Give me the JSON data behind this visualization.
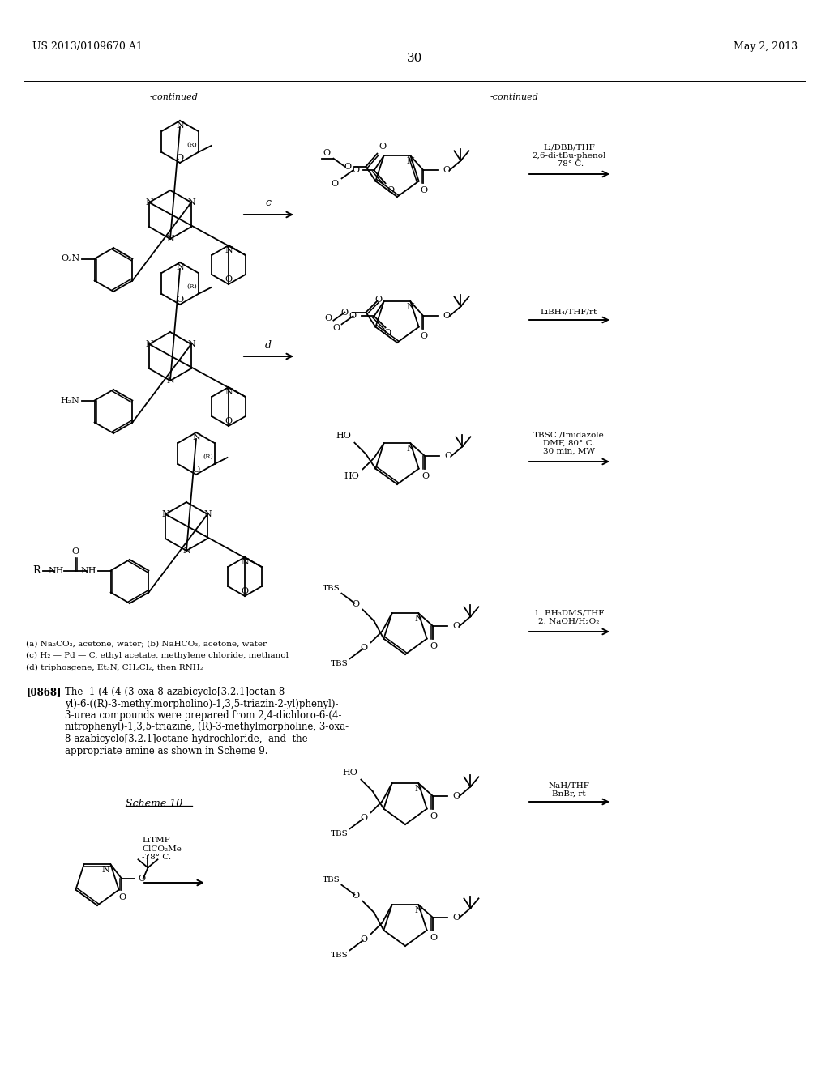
{
  "patent_number": "US 2013/0109670 A1",
  "patent_date": "May 2, 2013",
  "page_number": "30",
  "background_color": "#ffffff",
  "continued_left": "-continued",
  "continued_right": "-continued",
  "scheme_label": "Scheme 10",
  "footnotes": [
    "(a) Na₂CO₃, acetone, water; (b) NaHCO₃, acetone, water",
    "(c) H₂ — Pd — C, ethyl acetate, methylene chloride, methanol",
    "(d) triphosgene, Et₃N, CH₂Cl₂, then RNH₂"
  ],
  "paragraph_tag": "[0868]",
  "paragraph_lines": [
    "The  1-(4-(4-(3-oxa-8-azabicyclo[3.2.1]octan-8-",
    "yl)-6-((R)-3-methylmorpholino)-1,3,5-triazin-2-yl)phenyl)-",
    "3-urea compounds were prepared from 2,4-dichloro-6-(4-",
    "nitrophenyl)-1,3,5-triazine, (R)-3-methylmorpholine, 3-oxa-",
    "8-azabicyclo[3.2.1]octane-hydrochloride,  and  the",
    "appropriate amine as shown in Scheme 9."
  ],
  "right_reagents": [
    "Li/DBB/THF\n2,6-di-tBu-phenol\n-78° C.",
    "LiBH₄/THF/rt",
    "TBSCl/Imidazole\nDMF, 80° C.\n30 min, MW",
    "1. BH₃DMS/THF\n2. NaOH/H₂O₂",
    "NaH/THF\nBnBr, rt"
  ],
  "scheme10_reagents": "LiTMP\nClCO₂Me\n-78° C."
}
